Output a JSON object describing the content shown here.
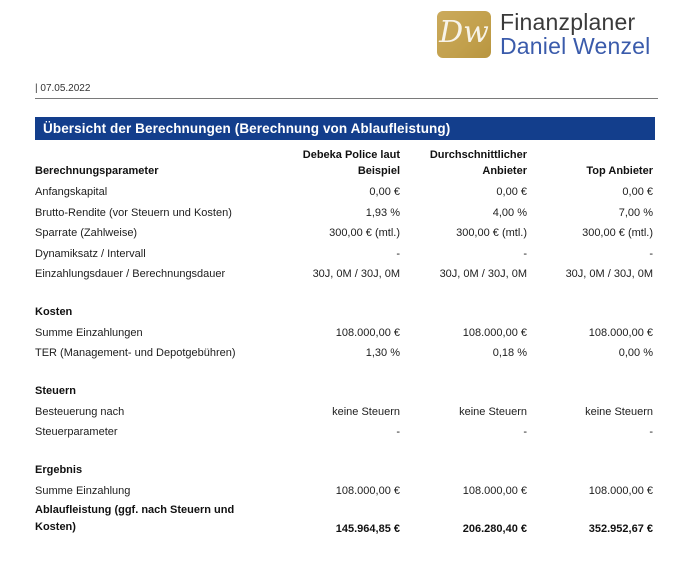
{
  "brand": {
    "logo_initials": "Dw",
    "name_line1": "Finanzplaner",
    "name_line2": "Daniel Wenzel"
  },
  "meta": {
    "date": "| 07.05.2022"
  },
  "title_bar": {
    "text": "Übersicht der Berechnungen (Berechnung von Ablaufleistung)"
  },
  "colors": {
    "title_bar_blue": "#133e8c",
    "logo_gold": "#c2a04c",
    "brand_name_blue": "#3a5bab"
  },
  "table": {
    "header": {
      "param_label": "Berechnungsparameter",
      "col1_line1": "Debeka Police laut",
      "col1_line2": "Beispiel",
      "col2_line1": "Durchschnittlicher",
      "col2_line2": "Anbieter",
      "col3_line1": "",
      "col3_line2": "Top Anbieter"
    },
    "sections": [
      {
        "title": "",
        "rows": [
          {
            "label": "Anfangskapital",
            "v1": "0,00 €",
            "v2": "0,00 €",
            "v3": "0,00 €"
          },
          {
            "label": "Brutto-Rendite (vor Steuern und Kosten)",
            "v1": "1,93 %",
            "v2": "4,00 %",
            "v3": "7,00 %"
          },
          {
            "label": "Sparrate (Zahlweise)",
            "v1": "300,00 € (mtl.)",
            "v2": "300,00 € (mtl.)",
            "v3": "300,00 € (mtl.)"
          },
          {
            "label": "Dynamiksatz / Intervall",
            "v1": "-",
            "v2": "-",
            "v3": "-"
          },
          {
            "label": "Einzahlungsdauer / Berechnungsdauer",
            "v1": "30J, 0M / 30J, 0M",
            "v2": "30J, 0M / 30J, 0M",
            "v3": "30J, 0M / 30J, 0M"
          }
        ]
      },
      {
        "title": "Kosten",
        "rows": [
          {
            "label": "Summe Einzahlungen",
            "v1": "108.000,00 €",
            "v2": "108.000,00 €",
            "v3": "108.000,00 €"
          },
          {
            "label": "TER (Management- und Depotgebühren)",
            "v1": "1,30 %",
            "v2": "0,18 %",
            "v3": "0,00 %"
          }
        ]
      },
      {
        "title": "Steuern",
        "rows": [
          {
            "label": "Besteuerung nach",
            "v1": "keine Steuern",
            "v2": "keine Steuern",
            "v3": "keine Steuern"
          },
          {
            "label": "Steuerparameter",
            "v1": "-",
            "v2": "-",
            "v3": "-"
          }
        ]
      },
      {
        "title": "Ergebnis",
        "rows": [
          {
            "label": "Summe Einzahlung",
            "v1": "108.000,00 €",
            "v2": "108.000,00 €",
            "v3": "108.000,00 €"
          },
          {
            "label": "Ablaufleistung (ggf. nach Steuern und Kosten)",
            "v1": "145.964,85 €",
            "v2": "206.280,40 €",
            "v3": "352.952,67 €"
          }
        ]
      }
    ]
  }
}
